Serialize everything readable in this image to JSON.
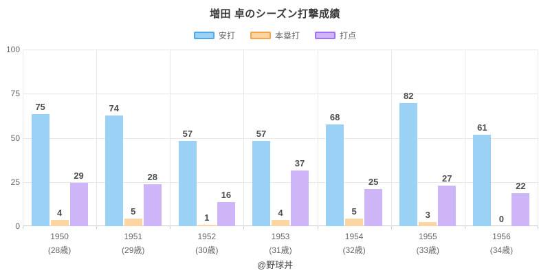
{
  "title": "増田 卓のシーズン打撃成績",
  "footer": "@野球丼",
  "legend": [
    {
      "name_key": "hits",
      "label": "安打",
      "fill": "#9bd1f5",
      "border": "#52a7e6"
    },
    {
      "name_key": "home-runs",
      "label": "本塁打",
      "fill": "#fbd6a2",
      "border": "#f8a24e"
    },
    {
      "name_key": "rbi",
      "label": "打点",
      "fill": "#cdb5f7",
      "border": "#a173f2"
    }
  ],
  "chart_data": {
    "type": "bar",
    "title": "増田 卓のシーズン打撃成績",
    "categories": [
      "1950",
      "1951",
      "1952",
      "1953",
      "1954",
      "1955",
      "1956"
    ],
    "category_sublabels": [
      "(28歳)",
      "(29歳)",
      "(30歳)",
      "(31歳)",
      "(32歳)",
      "(33歳)",
      "(34歳)"
    ],
    "series": [
      {
        "name": "安打",
        "name_key": "hits",
        "color": "#9bd1f5",
        "values": [
          75,
          74,
          57,
          57,
          68,
          82,
          61
        ]
      },
      {
        "name": "本塁打",
        "name_key": "home-runs",
        "color": "#fbd6a2",
        "values": [
          4,
          5,
          1,
          4,
          5,
          3,
          0
        ]
      },
      {
        "name": "打点",
        "name_key": "rbi",
        "color": "#cdb5f7",
        "values": [
          29,
          28,
          16,
          37,
          25,
          27,
          22
        ]
      }
    ],
    "xlabel": "",
    "ylabel": "",
    "ylim": [
      0,
      100
    ],
    "yticks": [
      0,
      25,
      50,
      75,
      100
    ],
    "grid": true,
    "legend_position": "top",
    "bar_display_max": 118
  }
}
